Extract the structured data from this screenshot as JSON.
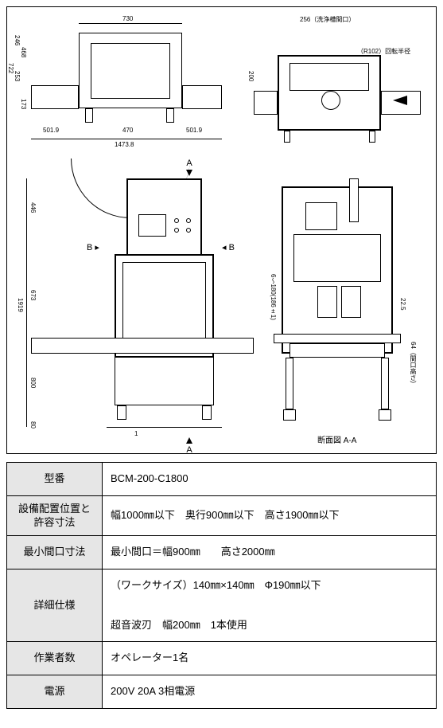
{
  "drawing": {
    "overall_width": 541,
    "overall_height": 562,
    "top_view": {
      "dims": {
        "width_top": "730",
        "left_seg": "501.9",
        "mid_seg": "470",
        "right_seg": "501.9",
        "total": "1473.8",
        "h_left_1": "246",
        "h_left_2": "468",
        "h_left_3": "253",
        "h_left_4": "173",
        "h_total": "722"
      }
    },
    "right_top_view": {
      "notes": {
        "wash_tank": "256（洗浄槽間口）",
        "rotation": "（R102）回転半径"
      },
      "dims": {
        "depth": "200"
      }
    },
    "front_view": {
      "dims": {
        "h_top": "446",
        "h_mid": "673",
        "h_bottom": "800",
        "h_base": "80",
        "h_total": "1919",
        "gap": "1"
      },
      "section_A_top": "A",
      "section_A_bottom": "A",
      "section_B_left": "B",
      "section_B_right": "B"
    },
    "section_view": {
      "label": "断面図 A-A",
      "dims": {
        "note1": "6～180(186±1)",
        "right1": "22.5",
        "right2": "64（間口高さ）"
      }
    }
  },
  "spec": {
    "rows": [
      {
        "label": "型番",
        "value": "BCM-200-C1800"
      },
      {
        "label": "設備配置位置と\n許容寸法",
        "value": "幅1000㎜以下　奥行900㎜以下　高さ1900㎜以下"
      },
      {
        "label": "最小間口寸法",
        "value": "最小間口＝幅900㎜　　高さ2000㎜"
      },
      {
        "label": "詳細仕様",
        "value": "（ワークサイズ）140㎜×140㎜　Φ190㎜以下\n\n超音波刃　幅200㎜　1本使用"
      },
      {
        "label": "作業者数",
        "value": "オペレーター1名"
      },
      {
        "label": "電源",
        "value": "200V 20A 3相電源"
      }
    ]
  },
  "colors": {
    "border": "#000000",
    "bg": "#ffffff",
    "label_bg": "#e6e6e6"
  }
}
